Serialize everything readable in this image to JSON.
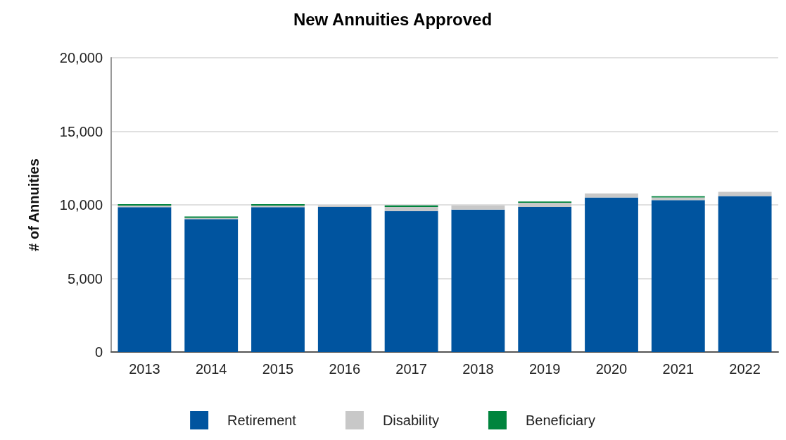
{
  "chart_data": {
    "type": "bar",
    "title": "New Annuities Approved",
    "ylabel": "# of Annuities",
    "categories": [
      "2013",
      "2014",
      "2015",
      "2016",
      "2017",
      "2018",
      "2019",
      "2020",
      "2021",
      "2022"
    ],
    "stacked": true,
    "series": [
      {
        "name": "Retirement",
        "color": "#00549f",
        "values": [
          9850,
          9030,
          9850,
          9860,
          9580,
          9680,
          9860,
          10500,
          10320,
          10600
        ]
      },
      {
        "name": "Disability",
        "color": "#c8c8c8",
        "values": [
          100,
          90,
          100,
          100,
          280,
          280,
          280,
          280,
          180,
          280
        ]
      },
      {
        "name": "Beneficiary",
        "color": "#00843d",
        "values": [
          100,
          90,
          100,
          0,
          100,
          0,
          90,
          0,
          90,
          0
        ]
      }
    ],
    "ylim": [
      0,
      20000
    ],
    "yticks": [
      0,
      {
        "value": 5000,
        "label": "5,000"
      },
      {
        "value": 10000,
        "label": "10,000"
      },
      {
        "value": 15000,
        "label": "15,000"
      },
      {
        "value": 20000,
        "label": "20,000"
      }
    ],
    "grid": "y",
    "legend": "bottom"
  }
}
